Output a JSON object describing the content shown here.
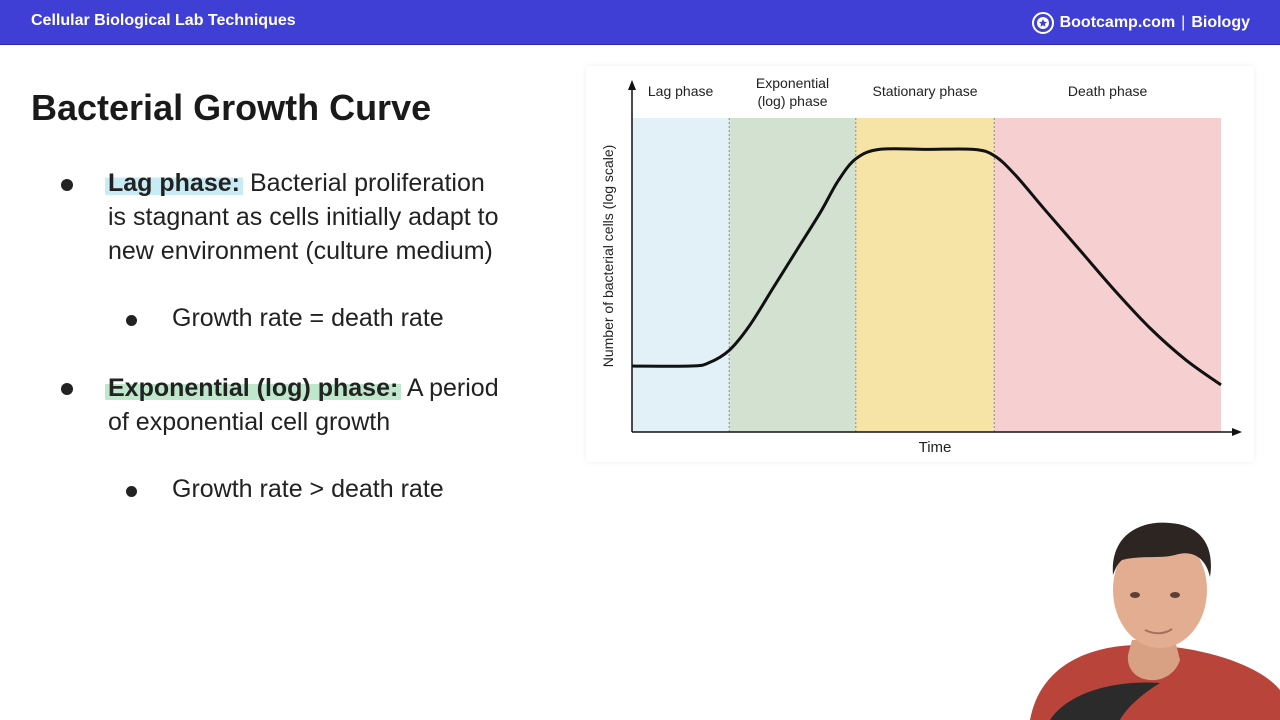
{
  "header": {
    "course_title": "Cellular Biological Lab Techniques",
    "brand_name": "Bootcamp.com",
    "brand_separator": "|",
    "brand_subject": "Biology",
    "bar_color": "#3f3fd6"
  },
  "slide": {
    "title": "Bacterial Growth Curve",
    "bullets": [
      {
        "term": "Lag phase:",
        "line1_rest": "Bacterial proliferation",
        "line2": "is stagnant as cells initially adapt to",
        "line3": "new environment (culture medium)",
        "highlight_color": "#c9ecf4",
        "sub": "Growth rate = death rate"
      },
      {
        "term": "Exponential (log) phase:",
        "line1_rest": "A period",
        "line2": "of exponential cell growth",
        "highlight_color": "#bfe7cc",
        "sub": "Growth rate > death rate"
      }
    ]
  },
  "chart_data": {
    "type": "line",
    "phases": [
      {
        "name": "Lag phase",
        "color": "#e2f0f7"
      },
      {
        "name": "Exponential (log) phase",
        "name_line1": "Exponential",
        "name_line2": "(log) phase",
        "color": "#d3e1d1"
      },
      {
        "name": "Stationary phase",
        "color": "#f6e4a6"
      },
      {
        "name": "Death phase",
        "color": "#f6d0d0"
      }
    ],
    "xlabel": "Time",
    "ylabel": "Number of bacterial cells (log scale)",
    "x_range": [
      0,
      100
    ],
    "y_range": [
      0,
      100
    ],
    "phase_bounds": [
      0,
      16.5,
      38,
      61.5,
      100
    ],
    "curve": [
      [
        0,
        21
      ],
      [
        10,
        21
      ],
      [
        13,
        22
      ],
      [
        16.5,
        26
      ],
      [
        20,
        34
      ],
      [
        24,
        46
      ],
      [
        28,
        58
      ],
      [
        32,
        70
      ],
      [
        35,
        80
      ],
      [
        38,
        87
      ],
      [
        42,
        90
      ],
      [
        50,
        90
      ],
      [
        58,
        90
      ],
      [
        61.5,
        88
      ],
      [
        65,
        82
      ],
      [
        70,
        71
      ],
      [
        76,
        58
      ],
      [
        82,
        45
      ],
      [
        88,
        33
      ],
      [
        94,
        23
      ],
      [
        100,
        15
      ]
    ],
    "grid": false
  },
  "presenter": {
    "description_icon": "presenter-video-icon"
  }
}
